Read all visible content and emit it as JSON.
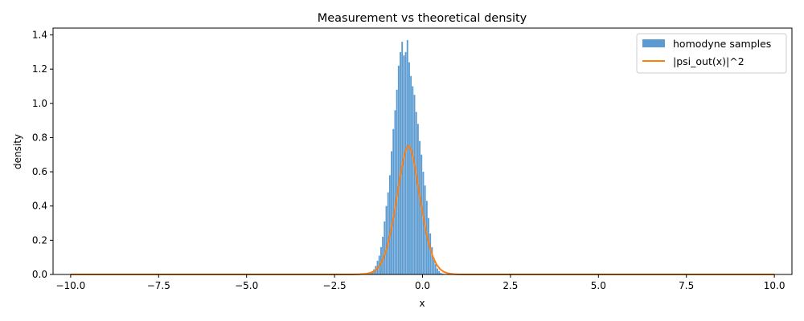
{
  "chart_data": {
    "type": "bar",
    "title": "Measurement vs theoretical density",
    "xlabel": "x",
    "ylabel": "density",
    "xlim": [
      -10.5,
      10.5
    ],
    "ylim": [
      0,
      1.44
    ],
    "xticks": [
      -10.0,
      -7.5,
      -5.0,
      -2.5,
      0.0,
      2.5,
      5.0,
      7.5,
      10.0
    ],
    "xtick_labels": [
      "−10.0",
      "−7.5",
      "−5.0",
      "−2.5",
      "0.0",
      "2.5",
      "5.0",
      "7.5",
      "10.0"
    ],
    "yticks": [
      0.0,
      0.2,
      0.4,
      0.6,
      0.8,
      1.0,
      1.2,
      1.4
    ],
    "ytick_labels": [
      "0.0",
      "0.2",
      "0.4",
      "0.6",
      "0.8",
      "1.0",
      "1.2",
      "1.4"
    ],
    "grid": false,
    "legend": "top-right",
    "series": [
      {
        "name": "homodyne samples",
        "kind": "histogram",
        "color": "#5b9bd1",
        "bin_width": 0.05,
        "x": [
          -1.6,
          -1.55,
          -1.5,
          -1.45,
          -1.4,
          -1.35,
          -1.3,
          -1.25,
          -1.2,
          -1.15,
          -1.1,
          -1.05,
          -1.0,
          -0.95,
          -0.9,
          -0.85,
          -0.8,
          -0.75,
          -0.7,
          -0.65,
          -0.6,
          -0.55,
          -0.5,
          -0.45,
          -0.4,
          -0.35,
          -0.3,
          -0.25,
          -0.2,
          -0.15,
          -0.1,
          -0.05,
          0.0,
          0.05,
          0.1,
          0.15,
          0.2,
          0.25,
          0.3,
          0.35,
          0.4,
          0.45,
          0.5,
          0.55,
          0.6,
          0.65,
          0.7
        ],
        "values": [
          0.0,
          0.005,
          0.01,
          0.02,
          0.03,
          0.05,
          0.08,
          0.11,
          0.16,
          0.22,
          0.31,
          0.4,
          0.48,
          0.58,
          0.72,
          0.85,
          0.96,
          1.08,
          1.22,
          1.3,
          1.36,
          1.28,
          1.3,
          1.37,
          1.24,
          1.16,
          1.1,
          1.05,
          0.95,
          0.88,
          0.78,
          0.7,
          0.6,
          0.52,
          0.43,
          0.33,
          0.24,
          0.16,
          0.1,
          0.06,
          0.035,
          0.02,
          0.01,
          0.005,
          0.003,
          0.0,
          0.0
        ]
      },
      {
        "name": "|psi_out(x)|^2",
        "kind": "line",
        "color": "#ff7f0e",
        "x": [
          -10.0,
          -2.0,
          -1.8,
          -1.6,
          -1.5,
          -1.4,
          -1.3,
          -1.2,
          -1.1,
          -1.0,
          -0.9,
          -0.8,
          -0.7,
          -0.6,
          -0.5,
          -0.45,
          -0.4,
          -0.35,
          -0.3,
          -0.2,
          -0.1,
          0.0,
          0.1,
          0.2,
          0.3,
          0.4,
          0.5,
          0.6,
          0.7,
          0.8,
          0.9,
          1.0,
          1.2,
          1.5,
          10.0
        ],
        "values": [
          0.0,
          0.0,
          0.001,
          0.004,
          0.008,
          0.016,
          0.031,
          0.058,
          0.1,
          0.165,
          0.252,
          0.363,
          0.488,
          0.615,
          0.711,
          0.74,
          0.752,
          0.74,
          0.711,
          0.615,
          0.488,
          0.363,
          0.252,
          0.165,
          0.1,
          0.058,
          0.031,
          0.016,
          0.008,
          0.004,
          0.0015,
          0.0005,
          0.0001,
          0.0,
          0.0
        ]
      }
    ]
  }
}
